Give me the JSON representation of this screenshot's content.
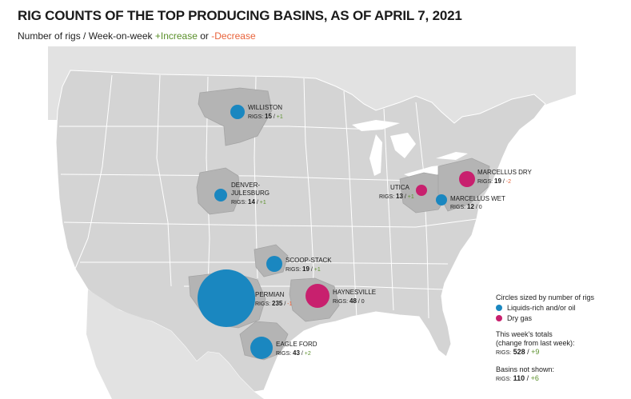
{
  "title": "RIG COUNTS OF THE TOP PRODUCING BASINS, AS OF APRIL 7, 2021",
  "subtitle": {
    "prefix": "Number of rigs / Week-on-week",
    "increase": "+Increase",
    "or": "or",
    "decrease": "-Decrease"
  },
  "colors": {
    "oil": "#1a87c0",
    "gas": "#c8206e",
    "increase": "#5a8f2a",
    "decrease": "#e8623a",
    "land": "#d4d4d4",
    "basin": "#b4b4b4"
  },
  "rigs_prefix": "RIGS:",
  "basins": [
    {
      "name": "WILLISTON",
      "rigs": "15",
      "change": "+1",
      "dir": "inc",
      "type": "oil"
    },
    {
      "name": "DENVER-",
      "name2": "JULESBURG",
      "rigs": "14",
      "change": "+1",
      "dir": "inc",
      "type": "oil"
    },
    {
      "name": "SCOOP-STACK",
      "rigs": "19",
      "change": "+1",
      "dir": "inc",
      "type": "oil"
    },
    {
      "name": "PERMIAN",
      "rigs": "235",
      "change": "-1",
      "dir": "dec",
      "type": "oil"
    },
    {
      "name": "HAYNESVILLE",
      "rigs": "48",
      "change": "0",
      "dir": "none",
      "type": "gas"
    },
    {
      "name": "EAGLE FORD",
      "rigs": "43",
      "change": "+2",
      "dir": "inc",
      "type": "oil"
    },
    {
      "name": "UTICA",
      "rigs": "13",
      "change": "+1",
      "dir": "inc",
      "type": "gas"
    },
    {
      "name": "MARCELLUS DRY",
      "rigs": "19",
      "change": "-2",
      "dir": "dec",
      "type": "gas"
    },
    {
      "name": "MARCELLUS WET",
      "rigs": "12",
      "change": "0",
      "dir": "none",
      "type": "oil"
    }
  ],
  "legend": {
    "title": "Circles sized by number of rigs",
    "oil_label": "Liquids-rich and/or oil",
    "gas_label": "Dry gas",
    "totals_line1": "This week's totals",
    "totals_line2": "(change from last week):",
    "totals_rigs": "528",
    "totals_change": "+9",
    "notshown_label": "Basins not shown:",
    "notshown_rigs": "110",
    "notshown_change": "+6"
  }
}
